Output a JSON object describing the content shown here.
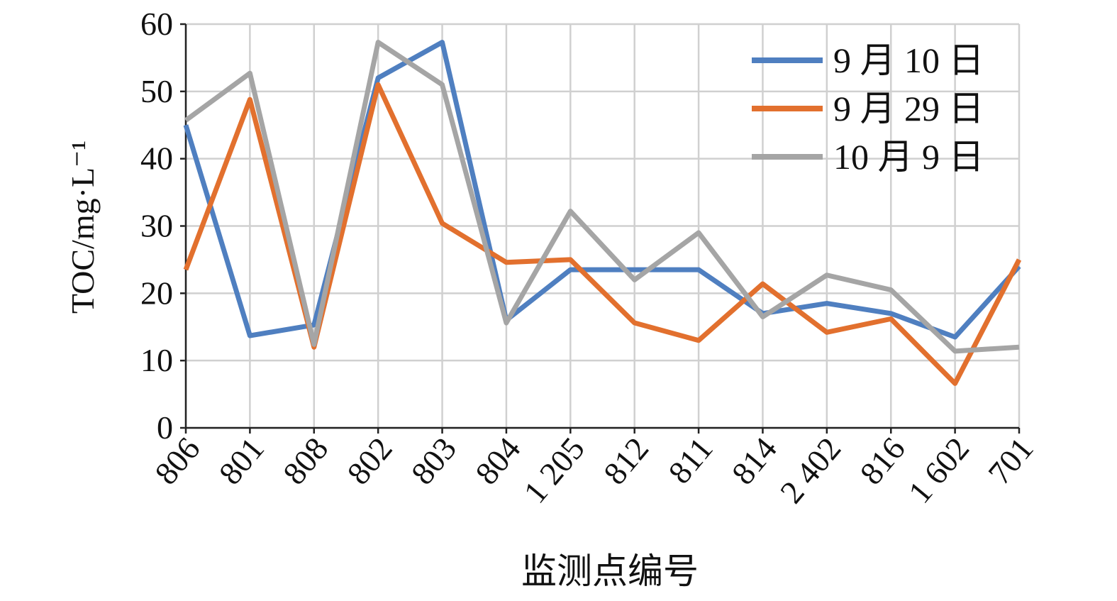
{
  "chart_data": {
    "type": "line",
    "y_label": "TOC/mg·L⁻¹",
    "x_label": "监测点编号",
    "categories": [
      "806",
      "801",
      "808",
      "802",
      "803",
      "804",
      "1 205",
      "812",
      "811",
      "814",
      "2 402",
      "816",
      "1 602",
      "701"
    ],
    "series": [
      {
        "name": "9 月 10 日",
        "color": "#4f7fc0",
        "values": [
          45,
          13.7,
          15.3,
          52,
          57.3,
          16,
          23.5,
          23.5,
          23.5,
          17,
          18.5,
          17,
          13.5,
          24
        ]
      },
      {
        "name": "9 月 29 日",
        "color": "#e2702e",
        "values": [
          23.5,
          48.8,
          12,
          51,
          30.4,
          24.6,
          25,
          15.6,
          13,
          21.4,
          14.2,
          16.2,
          6.6,
          25
        ]
      },
      {
        "name": "10 月 9 日",
        "color": "#a5a5a5",
        "values": [
          45.7,
          52.7,
          12.4,
          57.3,
          51,
          15.6,
          32.2,
          22,
          29,
          16.5,
          22.7,
          20.5,
          11.4,
          12
        ]
      }
    ],
    "ylim": [
      0,
      60
    ],
    "yticks": [
      0,
      10,
      20,
      30,
      40,
      50,
      60
    ],
    "grid": true,
    "legend": "upper right"
  }
}
